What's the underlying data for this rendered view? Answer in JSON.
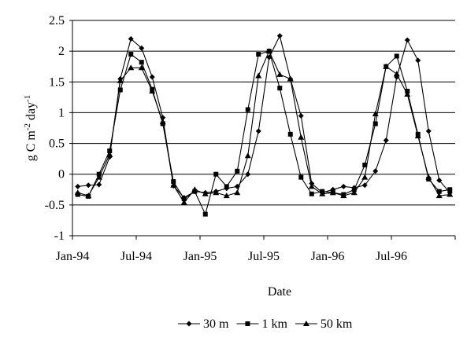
{
  "chart_data": {
    "type": "line",
    "title": "",
    "xlabel": "Date",
    "ylabel": "g C m-2 day-1",
    "ylabel_parts": {
      "base": "g C m",
      "exp1": "-2",
      "mid": " day",
      "exp2": "-1"
    },
    "ylim": [
      -1,
      2.5
    ],
    "yticks": [
      -1,
      -0.5,
      0,
      0.5,
      1,
      1.5,
      2,
      2.5
    ],
    "ytick_labels": [
      "-1",
      "-0.5",
      "0",
      "0.5",
      "1",
      "1.5",
      "2",
      "2.5"
    ],
    "xticks": [
      {
        "month": 0,
        "label": "Jan-94"
      },
      {
        "month": 6,
        "label": "Jul-94"
      },
      {
        "month": 12,
        "label": "Jan-95"
      },
      {
        "month": 18,
        "label": "Jul-95"
      },
      {
        "month": 24,
        "label": "Jan-96"
      },
      {
        "month": 30,
        "label": "Jul-96"
      }
    ],
    "xlim": [
      "Jan-94",
      "Jan-97"
    ],
    "x": [
      "Jan-94",
      "Feb-94",
      "Mar-94",
      "Apr-94",
      "May-94",
      "Jun-94",
      "Jul-94",
      "Aug-94",
      "Sep-94",
      "Oct-94",
      "Nov-94",
      "Dec-94",
      "Jan-95",
      "Feb-95",
      "Mar-95",
      "Apr-95",
      "May-95",
      "Jun-95",
      "Jul-95",
      "Aug-95",
      "Sep-95",
      "Oct-95",
      "Nov-95",
      "Dec-95",
      "Jan-96",
      "Feb-96",
      "Mar-96",
      "Apr-96",
      "May-96",
      "Jun-96",
      "Jul-96",
      "Aug-96",
      "Sep-96",
      "Oct-96",
      "Nov-96",
      "Dec-96"
    ],
    "grid": true,
    "legend_position": "bottom",
    "series": [
      {
        "name": "30 m",
        "marker": "diamond",
        "values": [
          -0.2,
          -0.18,
          -0.17,
          0.28,
          1.55,
          2.2,
          2.05,
          1.58,
          0.92,
          -0.19,
          -0.38,
          -0.28,
          -0.3,
          -0.28,
          -0.23,
          -0.2,
          0.0,
          0.7,
          1.9,
          2.25,
          1.55,
          0.95,
          -0.15,
          -0.3,
          -0.25,
          -0.2,
          -0.22,
          -0.18,
          0.05,
          0.55,
          1.58,
          2.18,
          1.85,
          0.7,
          -0.1,
          -0.3
        ]
      },
      {
        "name": "1 km",
        "marker": "square",
        "values": [
          -0.33,
          -0.36,
          0.0,
          0.38,
          1.37,
          1.95,
          1.82,
          1.38,
          0.82,
          -0.12,
          -0.4,
          -0.28,
          -0.65,
          0.0,
          -0.2,
          0.05,
          1.05,
          1.95,
          2.0,
          1.4,
          0.65,
          -0.05,
          -0.32,
          -0.28,
          -0.3,
          -0.33,
          -0.25,
          0.15,
          0.82,
          1.75,
          1.92,
          1.35,
          0.65,
          -0.08,
          -0.28,
          -0.25
        ]
      },
      {
        "name": "50 km",
        "marker": "triangle",
        "values": [
          -0.3,
          -0.35,
          -0.05,
          0.32,
          1.52,
          1.73,
          1.73,
          1.35,
          0.85,
          -0.18,
          -0.46,
          -0.25,
          -0.32,
          -0.3,
          -0.35,
          -0.3,
          0.3,
          1.6,
          2.0,
          1.62,
          1.55,
          0.6,
          -0.2,
          -0.32,
          -0.3,
          -0.35,
          -0.3,
          -0.05,
          0.98,
          1.75,
          1.63,
          1.3,
          0.62,
          -0.05,
          -0.35,
          -0.33
        ]
      }
    ]
  }
}
